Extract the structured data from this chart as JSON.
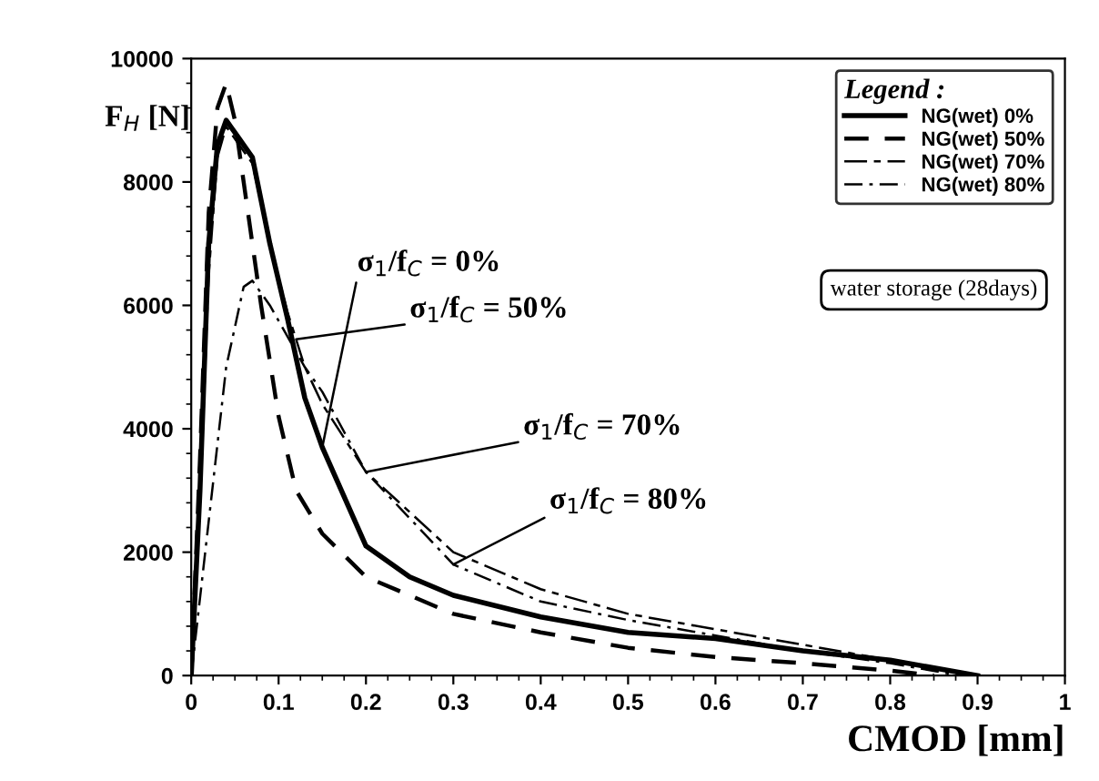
{
  "chart_data": {
    "type": "line",
    "xlabel": "CMOD [mm]",
    "ylabel": "F$_{H}$ [N]",
    "legend_title": "Legend :",
    "legend": "top right",
    "grid": false,
    "marker": "none",
    "xlim": [
      0,
      1
    ],
    "ylim": [
      0,
      10000
    ],
    "xticks": [
      0,
      0.1,
      0.2,
      0.3,
      0.4,
      0.5,
      0.6,
      0.7,
      0.8,
      0.9,
      1
    ],
    "yticks": [
      0,
      2000,
      4000,
      6000,
      8000,
      10000
    ],
    "series": [
      {
        "name": "NG(wet) 0%",
        "color": "#000000",
        "line_style": "solid",
        "x": [
          0,
          0.01,
          0.02,
          0.03,
          0.04,
          0.05,
          0.07,
          0.09,
          0.11,
          0.13,
          0.15,
          0.2,
          0.25,
          0.3,
          0.4,
          0.5,
          0.6,
          0.7,
          0.8,
          0.9
        ],
        "values": [
          0,
          3000,
          7000,
          8600,
          9000,
          8800,
          8400,
          7000,
          5800,
          4500,
          3700,
          2100,
          1600,
          1300,
          950,
          700,
          600,
          400,
          250,
          0
        ]
      },
      {
        "name": "NG(wet) 50%",
        "color": "#000000",
        "line_style": "dashed",
        "x": [
          0,
          0.01,
          0.02,
          0.03,
          0.04,
          0.05,
          0.06,
          0.08,
          0.1,
          0.12,
          0.15,
          0.2,
          0.3,
          0.4,
          0.5,
          0.6,
          0.7,
          0.8,
          0.85
        ],
        "values": [
          0,
          3500,
          7500,
          9200,
          9600,
          9000,
          8000,
          6000,
          4200,
          3000,
          2300,
          1600,
          1000,
          700,
          450,
          300,
          200,
          80,
          0
        ]
      },
      {
        "name": "NG(wet) 70%",
        "color": "#000000",
        "line_style": "dashed",
        "x": [
          0,
          0.01,
          0.02,
          0.03,
          0.04,
          0.05,
          0.07,
          0.09,
          0.11,
          0.13,
          0.15,
          0.2,
          0.3,
          0.4,
          0.5,
          0.6,
          0.7,
          0.8,
          0.9
        ],
        "values": [
          0,
          2800,
          6500,
          8400,
          8900,
          8700,
          8300,
          7000,
          5900,
          5000,
          4400,
          3300,
          2000,
          1400,
          1000,
          750,
          500,
          250,
          0
        ]
      },
      {
        "name": "NG(wet) 80%",
        "color": "#000000",
        "line_style": "dashdot",
        "x": [
          0,
          0.02,
          0.04,
          0.06,
          0.07,
          0.09,
          0.11,
          0.13,
          0.15,
          0.2,
          0.3,
          0.4,
          0.5,
          0.6,
          0.7,
          0.8,
          0.88
        ],
        "values": [
          0,
          2500,
          5000,
          6300,
          6400,
          6000,
          5500,
          5000,
          4600,
          3300,
          1800,
          1200,
          900,
          650,
          400,
          200,
          0
        ]
      }
    ],
    "annotations": [
      {
        "text": "σ$_{1}$/f$_{C}$ = 0%",
        "x": 0.15,
        "y": 3700
      },
      {
        "text": "σ$_{1}$/f$_{C}$ = 50%",
        "x": 0.12,
        "y": 5450
      },
      {
        "text": "σ$_{1}$/f$_{C}$ = 70%",
        "x": 0.2,
        "y": 3300
      },
      {
        "text": "σ$_{1}$/f$_{C}$ = 80%",
        "x": 0.3,
        "y": 1800
      },
      "water storage (28days)"
    ]
  }
}
